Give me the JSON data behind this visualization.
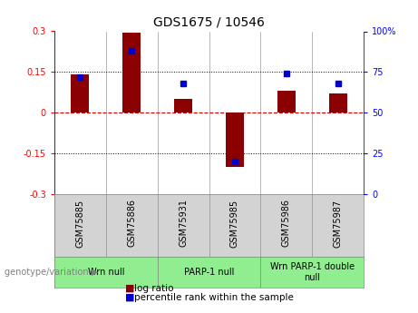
{
  "title": "GDS1675 / 10546",
  "samples": [
    "GSM75885",
    "GSM75886",
    "GSM75931",
    "GSM75985",
    "GSM75986",
    "GSM75987"
  ],
  "log_ratios": [
    0.14,
    0.295,
    0.05,
    -0.2,
    0.08,
    0.072
  ],
  "percentile_ranks": [
    72,
    88,
    68,
    20,
    74,
    68
  ],
  "ylim_left": [
    -0.3,
    0.3
  ],
  "ylim_right": [
    0,
    100
  ],
  "yticks_left": [
    -0.3,
    -0.15,
    0,
    0.15,
    0.3
  ],
  "yticks_right": [
    0,
    25,
    50,
    75,
    100
  ],
  "ytick_labels_left": [
    "-0.3",
    "-0.15",
    "0",
    "0.15",
    "0.3"
  ],
  "ytick_labels_right": [
    "0",
    "25",
    "50",
    "75",
    "100%"
  ],
  "bar_color": "#8B0000",
  "dot_color": "#0000CD",
  "hline_color": "#CC0000",
  "dotline_color": "black",
  "groups": [
    {
      "label": "Wrn null",
      "start": 0,
      "end": 2
    },
    {
      "label": "PARP-1 null",
      "start": 2,
      "end": 4
    },
    {
      "label": "Wrn PARP-1 double\nnull",
      "start": 4,
      "end": 6
    }
  ],
  "group_bg_color": "#90EE90",
  "sample_bg_color": "#D3D3D3",
  "bar_width": 0.35,
  "title_fontsize": 10,
  "tick_fontsize": 7,
  "label_fontsize": 7,
  "legend_fontsize": 7.5
}
